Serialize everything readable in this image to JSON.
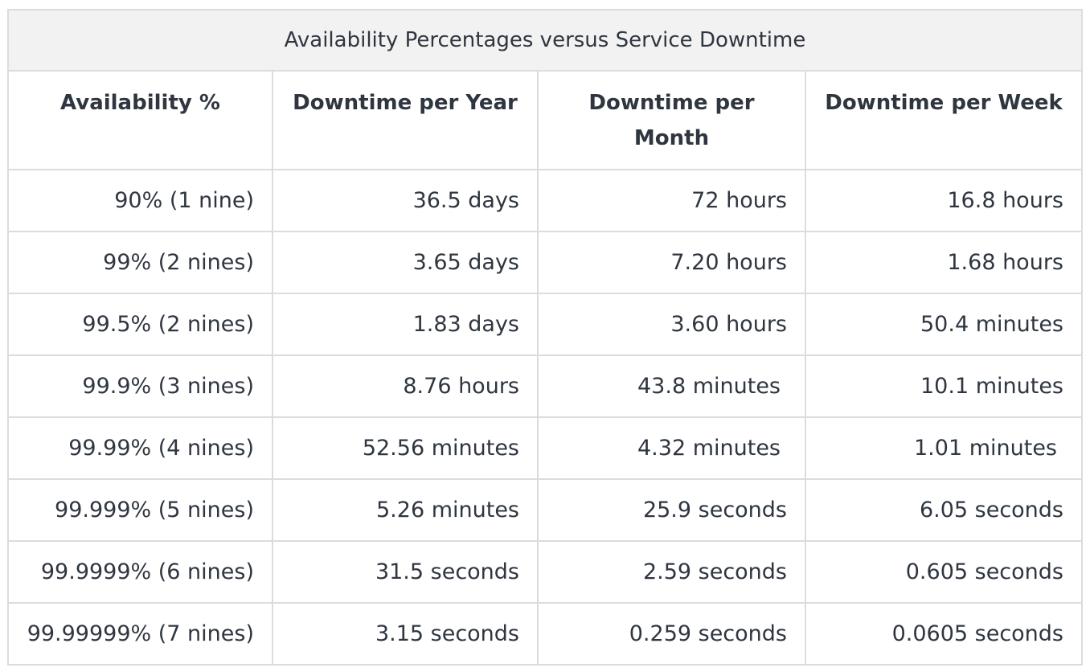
{
  "table": {
    "caption": "Availability Percentages versus Service Downtime",
    "headers": [
      "Availability %",
      "Downtime per Year",
      "Downtime per Month",
      "Downtime per Week"
    ],
    "rows": [
      [
        "90% (1 nine)",
        "36.5 days",
        "72 hours",
        "16.8 hours"
      ],
      [
        "99% (2 nines)",
        "3.65 days",
        "7.20 hours",
        "1.68 hours"
      ],
      [
        "99.5% (2 nines)",
        "1.83 days",
        "3.60 hours",
        "50.4 minutes"
      ],
      [
        "99.9% (3 nines)",
        "8.76 hours",
        "43.8 minutes",
        "10.1 minutes"
      ],
      [
        "99.99% (4 nines)",
        "52.56 minutes",
        "4.32 minutes",
        "1.01 minutes"
      ],
      [
        "99.999% (5 nines)",
        "5.26 minutes",
        "25.9 seconds",
        "6.05 seconds"
      ],
      [
        "99.9999% (6 nines)",
        "31.5 seconds",
        "2.59 seconds",
        "0.605 seconds"
      ],
      [
        "99.99999% (7 nines)",
        "3.15 seconds",
        "0.259 seconds",
        "0.0605 seconds"
      ]
    ]
  }
}
